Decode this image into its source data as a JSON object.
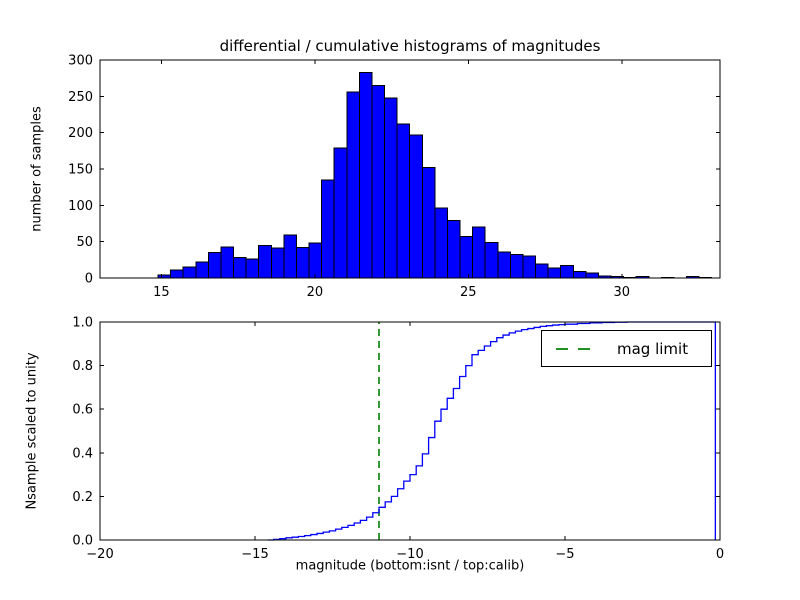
{
  "figure": {
    "title": "differential / cumulative histograms of magnitudes"
  },
  "colors": {
    "background": "#ffffff",
    "bar_fill": "#0000ff",
    "bar_edge": "#000000",
    "cdf_line": "#0000ff",
    "mag_limit_line": "#008000",
    "axes_frame": "#000000",
    "text": "#000000"
  },
  "chart_data": [
    {
      "type": "bar",
      "role": "differential-histogram",
      "title": "differential / cumulative histograms of magnitudes",
      "ylabel": "number of samples",
      "xlabel": "",
      "xlim": [
        13.0,
        33.2
      ],
      "ylim": [
        0,
        300
      ],
      "grid": false,
      "xticks": [
        {
          "v": 15,
          "label": "15"
        },
        {
          "v": 20,
          "label": "20"
        },
        {
          "v": 25,
          "label": "25"
        },
        {
          "v": 30,
          "label": "30"
        }
      ],
      "yticks": [
        {
          "v": 0,
          "label": "0"
        },
        {
          "v": 50,
          "label": "50"
        },
        {
          "v": 100,
          "label": "100"
        },
        {
          "v": 150,
          "label": "150"
        },
        {
          "v": 200,
          "label": "200"
        },
        {
          "v": 250,
          "label": "250"
        },
        {
          "v": 300,
          "label": "300"
        }
      ],
      "first_bin_left": 14.89,
      "bin_width": 0.41,
      "counts": [
        4,
        11,
        15,
        22,
        35,
        43,
        28,
        26,
        45,
        41,
        59,
        42,
        48,
        135,
        179,
        256,
        283,
        265,
        248,
        212,
        197,
        152,
        96,
        79,
        57,
        70,
        49,
        36,
        32,
        30,
        19,
        14,
        17,
        9,
        7,
        3,
        2,
        1,
        2,
        0,
        1,
        0,
        2,
        1
      ]
    },
    {
      "type": "line",
      "role": "cumulative-histogram-step",
      "ylabel": "Nsample scaled to unity",
      "xlabel": "magnitude (bottom:isnt / top:calib)",
      "xlim": [
        -20,
        0
      ],
      "ylim": [
        0.0,
        1.0
      ],
      "grid": false,
      "legend_position": "upper right",
      "xticks": [
        {
          "v": -20,
          "label": "−20"
        },
        {
          "v": -15,
          "label": "−15"
        },
        {
          "v": -10,
          "label": "−10"
        },
        {
          "v": -5,
          "label": "−5"
        },
        {
          "v": 0,
          "label": "0"
        }
      ],
      "yticks": [
        {
          "v": 0.0,
          "label": "0.0"
        },
        {
          "v": 0.2,
          "label": "0.2"
        },
        {
          "v": 0.4,
          "label": "0.4"
        },
        {
          "v": 0.6,
          "label": "0.6"
        },
        {
          "v": 0.8,
          "label": "0.8"
        },
        {
          "v": 1.0,
          "label": "1.0"
        }
      ],
      "legend": {
        "label": "mag limit",
        "color": "#008000",
        "linestyle": "dashed"
      },
      "vline": {
        "x": -11,
        "color": "#008000",
        "linestyle": "dashed",
        "name": "mag limit"
      },
      "closing_edge_x": -0.15,
      "steps": [
        [
          -14.6,
          0.0
        ],
        [
          -14.4,
          0.003
        ],
        [
          -14.2,
          0.006
        ],
        [
          -14.0,
          0.01
        ],
        [
          -13.8,
          0.013
        ],
        [
          -13.6,
          0.016
        ],
        [
          -13.4,
          0.02
        ],
        [
          -13.2,
          0.025
        ],
        [
          -13.0,
          0.03
        ],
        [
          -12.8,
          0.036
        ],
        [
          -12.6,
          0.042
        ],
        [
          -12.4,
          0.05
        ],
        [
          -12.2,
          0.058
        ],
        [
          -12.0,
          0.067
        ],
        [
          -11.8,
          0.078
        ],
        [
          -11.6,
          0.09
        ],
        [
          -11.4,
          0.105
        ],
        [
          -11.2,
          0.125
        ],
        [
          -11.0,
          0.15
        ],
        [
          -10.8,
          0.175
        ],
        [
          -10.6,
          0.2
        ],
        [
          -10.4,
          0.235
        ],
        [
          -10.2,
          0.27
        ],
        [
          -10.0,
          0.3
        ],
        [
          -9.8,
          0.34
        ],
        [
          -9.6,
          0.395
        ],
        [
          -9.4,
          0.47
        ],
        [
          -9.2,
          0.545
        ],
        [
          -9.0,
          0.6
        ],
        [
          -8.8,
          0.65
        ],
        [
          -8.6,
          0.695
        ],
        [
          -8.4,
          0.75
        ],
        [
          -8.2,
          0.8
        ],
        [
          -8.0,
          0.85
        ],
        [
          -7.8,
          0.87
        ],
        [
          -7.6,
          0.89
        ],
        [
          -7.4,
          0.91
        ],
        [
          -7.2,
          0.928
        ],
        [
          -7.0,
          0.94
        ],
        [
          -6.8,
          0.95
        ],
        [
          -6.6,
          0.958
        ],
        [
          -6.4,
          0.965
        ],
        [
          -6.2,
          0.97
        ],
        [
          -6.0,
          0.975
        ],
        [
          -5.8,
          0.98
        ],
        [
          -5.6,
          0.983
        ],
        [
          -5.4,
          0.986
        ],
        [
          -5.2,
          0.988
        ],
        [
          -5.0,
          0.99
        ],
        [
          -4.6,
          0.993
        ],
        [
          -4.2,
          0.996
        ],
        [
          -3.8,
          0.998
        ],
        [
          -3.4,
          0.999
        ],
        [
          -3.0,
          1.0
        ],
        [
          -0.15,
          1.0
        ]
      ]
    }
  ]
}
